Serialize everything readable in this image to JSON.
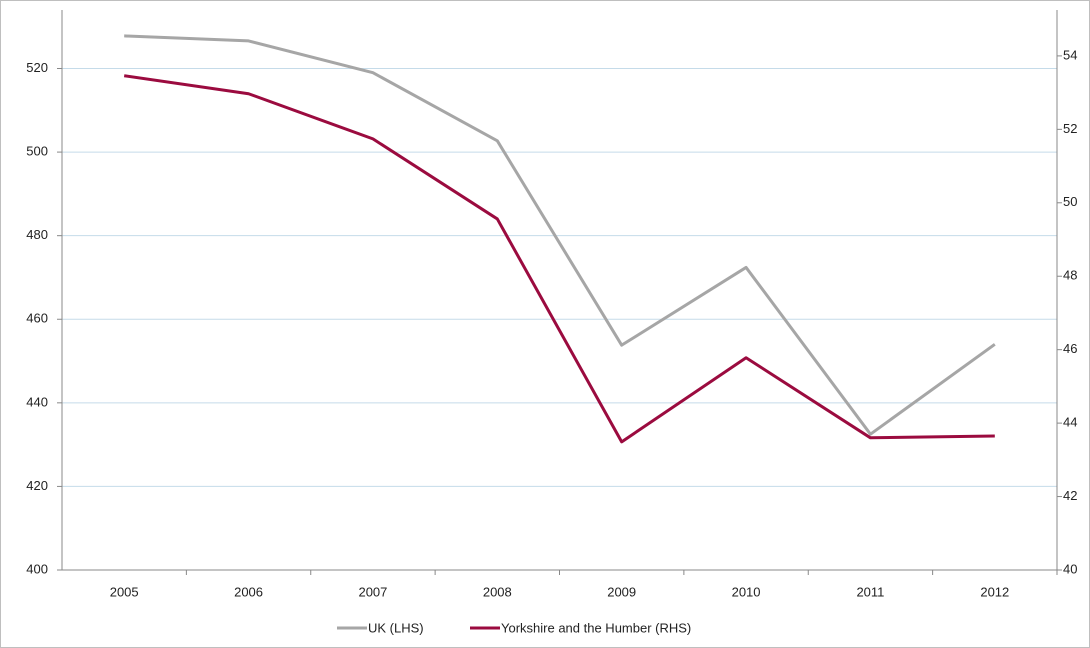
{
  "chart_data": {
    "type": "line",
    "categories": [
      "2005",
      "2006",
      "2007",
      "2008",
      "2009",
      "2010",
      "2011",
      "2012"
    ],
    "series": [
      {
        "name": "UK (LHS)",
        "color": "#a6a6a6",
        "values": [
          527.8,
          526.6,
          519,
          502.7,
          453.8,
          472.4,
          432.5,
          454
        ]
      },
      {
        "name": "Yorkshire and the Humber (RHS)",
        "color": "#9b0b3f",
        "axis": "y2",
        "values": [
          53.46,
          52.97,
          51.74,
          49.56,
          43.49,
          45.78,
          43.6,
          43.65
        ]
      }
    ],
    "ylim": [
      400,
      534
    ],
    "yticks": [
      400,
      420,
      440,
      460,
      480,
      500,
      520
    ],
    "y2lim": [
      40,
      55.25
    ],
    "y2ticks": [
      40,
      42,
      44,
      46,
      48,
      50,
      52,
      54
    ],
    "grid": true,
    "legend": "bottom"
  }
}
